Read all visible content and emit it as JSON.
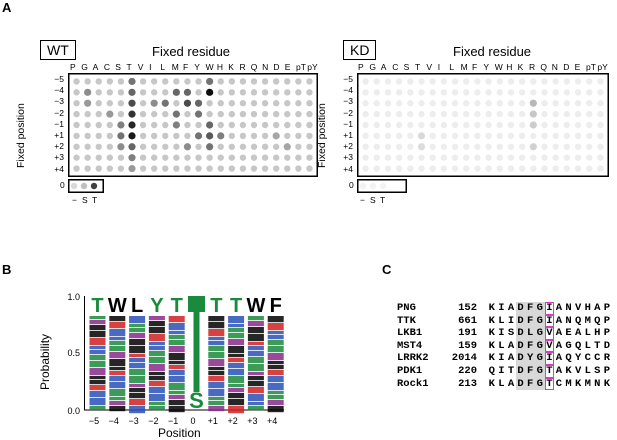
{
  "panels": {
    "A": {
      "letter": "A",
      "wt": {
        "label": "WT",
        "title": "Fixed residue",
        "columns": [
          "P",
          "G",
          "A",
          "C",
          "S",
          "T",
          "V",
          "I",
          "L",
          "M",
          "F",
          "Y",
          "W",
          "H",
          "K",
          "R",
          "Q",
          "N",
          "D",
          "E",
          "pT",
          "pY"
        ],
        "y_label": "Fixed position",
        "rows": [
          "−5",
          "−4",
          "−3",
          "−2",
          "−1",
          "+1",
          "+2",
          "+3",
          "+4"
        ],
        "control_row_label": "0",
        "control_cols": [
          "−",
          "S",
          "T"
        ]
      },
      "kd": {
        "label": "KD",
        "title": "Fixed residue",
        "columns": [
          "P",
          "G",
          "A",
          "C",
          "S",
          "T",
          "V",
          "I",
          "L",
          "M",
          "F",
          "Y",
          "W",
          "H",
          "K",
          "R",
          "Q",
          "N",
          "D",
          "E",
          "pT",
          "pY"
        ],
        "y_label": "Fixed position",
        "rows": [
          "−5",
          "−4",
          "−3",
          "−2",
          "−1",
          "+1",
          "+2",
          "+3",
          "+4"
        ],
        "control_row_label": "0",
        "control_cols": [
          "−",
          "S",
          "T"
        ]
      }
    },
    "B": {
      "letter": "B",
      "y_label": "Probability",
      "x_label": "Position",
      "y_ticks": [
        "1.0",
        "0.5",
        "0.0"
      ],
      "x_ticks": [
        "−5",
        "−4",
        "−3",
        "−2",
        "−1",
        "0",
        "+1",
        "+2",
        "+3",
        "+4"
      ],
      "top_letters": [
        "T",
        "W",
        "L",
        "Y",
        "T",
        "T",
        "T",
        "T",
        "W",
        "F"
      ]
    },
    "C": {
      "letter": "C",
      "rows": [
        {
          "name": "PNG",
          "num": "152",
          "seq": "KIADFGIANVHAP"
        },
        {
          "name": "TTK",
          "num": "661",
          "seq": "KLIDFGIANQMQP"
        },
        {
          "name": "LKB1",
          "num": "191",
          "seq": "KISDLGVAEALHP"
        },
        {
          "name": "MST4",
          "num": "159",
          "seq": "KLADFGVAGQLTD"
        },
        {
          "name": "LRRK2",
          "num": "2014",
          "seq": "KIADYGIAQYCCR"
        },
        {
          "name": "PDK1",
          "num": "220",
          "seq": "QITDFGTAKVLSP"
        },
        {
          "name": "Rock1",
          "num": "213",
          "seq": "KLADFGTCMKMNK"
        }
      ]
    }
  },
  "colors": {
    "green": "#1a8a3c",
    "blue": "#2850b8",
    "purple": "#8a2a8a",
    "red": "#d02020",
    "highlight_box": "#d040c0",
    "shade": "#d8d8d8"
  }
}
